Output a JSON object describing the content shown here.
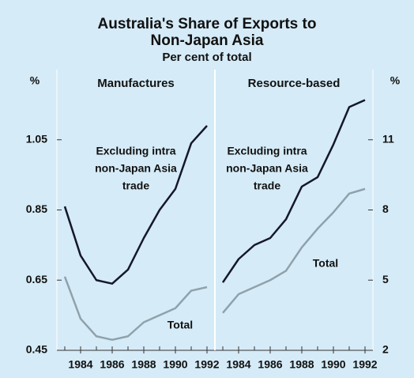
{
  "title": [
    "Australia's Share of Exports to",
    "Non-Japan Asia"
  ],
  "subtitle": "Per cent of total",
  "chart_data": [
    {
      "type": "line",
      "title": "Manufactures",
      "ylabel": "%",
      "axis_side": "left",
      "x": [
        1983,
        1984,
        1985,
        1986,
        1987,
        1988,
        1989,
        1990,
        1991,
        1992
      ],
      "xlim": [
        1982.5,
        1992.5
      ],
      "xticks": [
        1984,
        1986,
        1988,
        1990,
        1992
      ],
      "ylim": [
        0.45,
        1.25
      ],
      "yticks": [
        0.45,
        0.65,
        0.85,
        1.05
      ],
      "series": [
        {
          "label": [
            "Excluding intra",
            "non-Japan Asia",
            "trade"
          ],
          "color": "#15172a",
          "values": [
            0.86,
            0.72,
            0.65,
            0.64,
            0.68,
            0.77,
            0.85,
            0.91,
            1.04,
            1.09
          ]
        },
        {
          "label": [
            "Total"
          ],
          "color": "#8fa2ac",
          "values": [
            0.66,
            0.54,
            0.49,
            0.48,
            0.49,
            0.53,
            0.55,
            0.57,
            0.62,
            0.63
          ]
        }
      ]
    },
    {
      "type": "line",
      "title": "Resource-based",
      "ylabel": "%",
      "axis_side": "right",
      "x": [
        1983,
        1984,
        1985,
        1986,
        1987,
        1988,
        1989,
        1990,
        1991,
        1992
      ],
      "xlim": [
        1982.5,
        1992.5
      ],
      "xticks": [
        1984,
        1986,
        1988,
        1990,
        1992
      ],
      "ylim": [
        2,
        14
      ],
      "yticks": [
        2,
        5,
        8,
        11
      ],
      "series": [
        {
          "label": [
            "Excluding intra",
            "non-Japan Asia",
            "trade"
          ],
          "color": "#15172a",
          "values": [
            4.9,
            5.9,
            6.5,
            6.8,
            7.6,
            9.0,
            9.4,
            10.8,
            12.4,
            12.7
          ]
        },
        {
          "label": [
            "Total"
          ],
          "color": "#8fa2ac",
          "values": [
            3.6,
            4.4,
            4.7,
            5.0,
            5.4,
            6.4,
            7.2,
            7.9,
            8.7,
            8.9
          ]
        }
      ]
    }
  ]
}
